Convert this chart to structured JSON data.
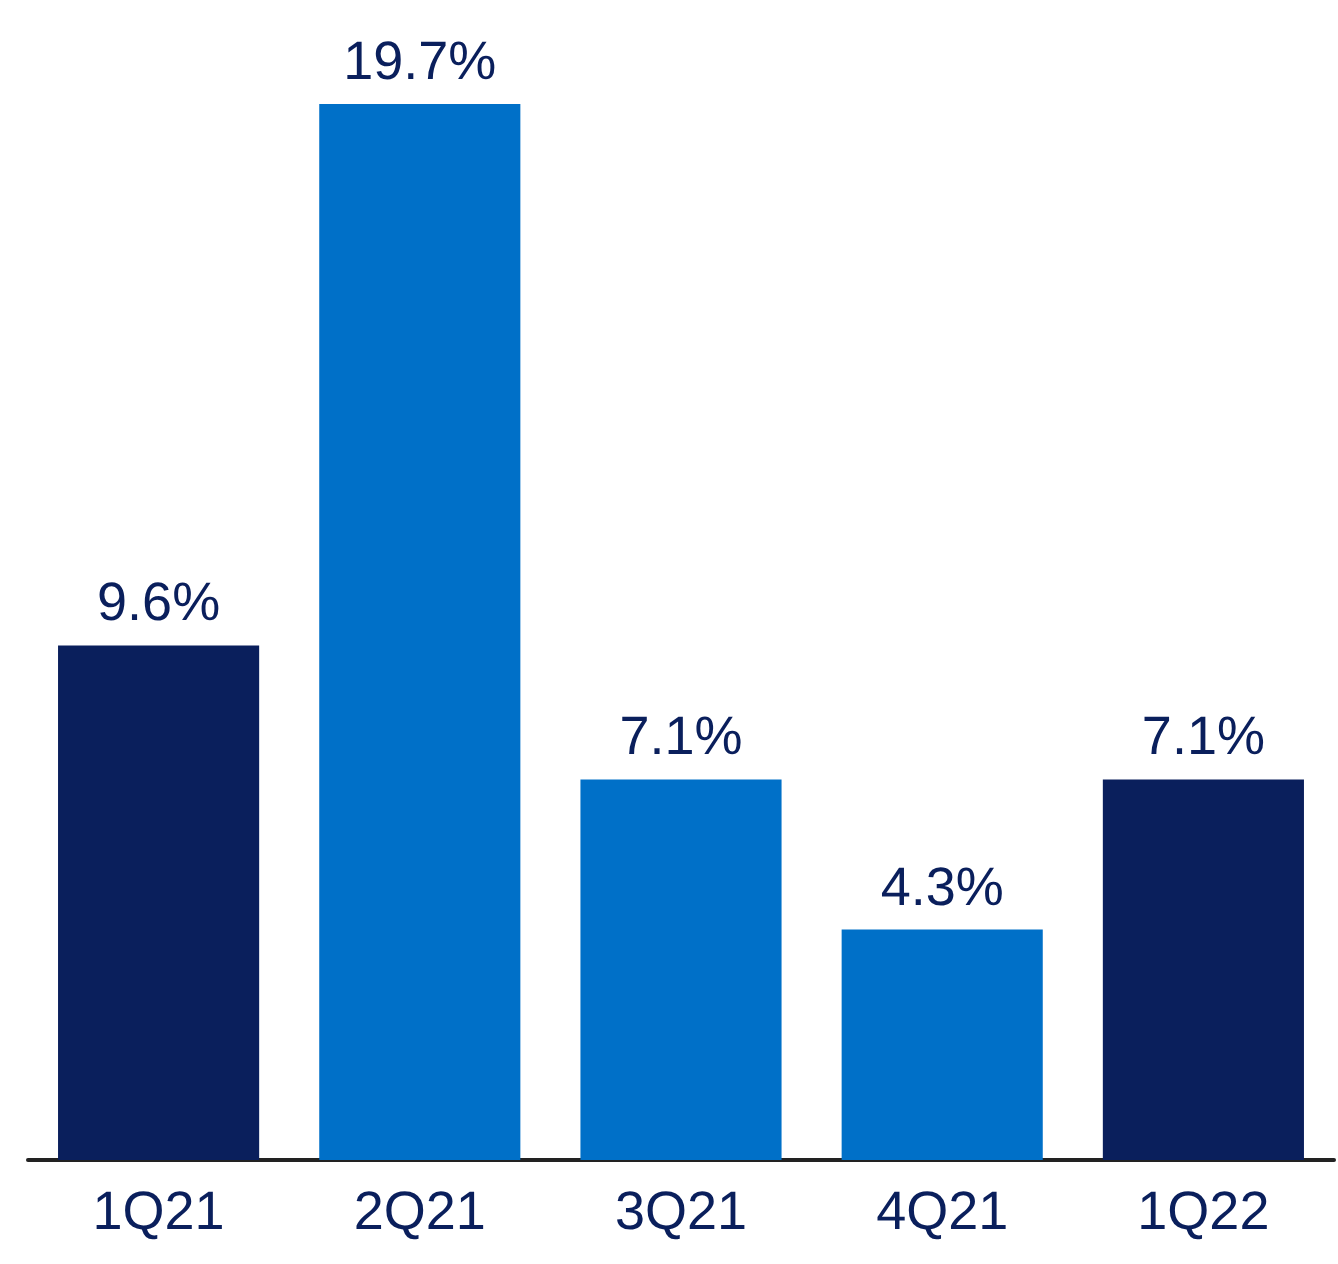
{
  "chart_data": {
    "type": "bar",
    "categories": [
      "1Q21",
      "2Q21",
      "3Q21",
      "4Q21",
      "1Q22"
    ],
    "values": [
      9.6,
      19.7,
      7.1,
      4.3,
      7.1
    ],
    "colors": [
      "#0a1f5c",
      "#0070c8",
      "#0070c8",
      "#0070c8",
      "#0a1f5c"
    ],
    "value_labels": [
      "9.6%",
      "19.7%",
      "7.1%",
      "4.3%",
      "7.1%"
    ],
    "grid": false
  }
}
